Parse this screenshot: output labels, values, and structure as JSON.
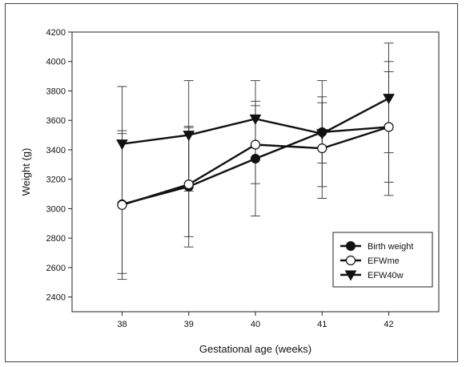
{
  "chart_data": {
    "type": "line",
    "xlabel": "Gestational age (weeks)",
    "ylabel": "Weight (g)",
    "x": [
      38,
      39,
      40,
      41,
      42
    ],
    "xlim": [
      37.25,
      42.75
    ],
    "ylim": [
      2300,
      4200
    ],
    "yticks": [
      2400,
      2600,
      2800,
      3000,
      3200,
      3400,
      3600,
      3800,
      4000,
      4200
    ],
    "grid": false,
    "legend_position": "bottom-right",
    "series": [
      {
        "name": "Birth weight",
        "marker": "filled-circle",
        "color": "#111111",
        "values": [
          3030,
          3150,
          3340,
          3520,
          3555
        ],
        "err_low": [
          2520,
          2740,
          2950,
          3070,
          3090
        ],
        "err_high": [
          3530,
          3560,
          3730,
          3760,
          3930
        ]
      },
      {
        "name": "EFWme",
        "marker": "open-circle",
        "color": "#111111",
        "values": [
          3025,
          3165,
          3435,
          3410,
          3555
        ],
        "err_low": [
          2560,
          2810,
          3170,
          3150,
          3180
        ],
        "err_high": [
          3510,
          3550,
          3700,
          3720,
          4000
        ]
      },
      {
        "name": "EFW40w",
        "marker": "filled-triangle-down",
        "color": "#111111",
        "values": [
          3440,
          3500,
          3610,
          3510,
          3750
        ],
        "err_low": [
          3040,
          3120,
          3340,
          3310,
          3380
        ],
        "err_high": [
          3830,
          3870,
          3870,
          3870,
          4125
        ]
      }
    ]
  }
}
